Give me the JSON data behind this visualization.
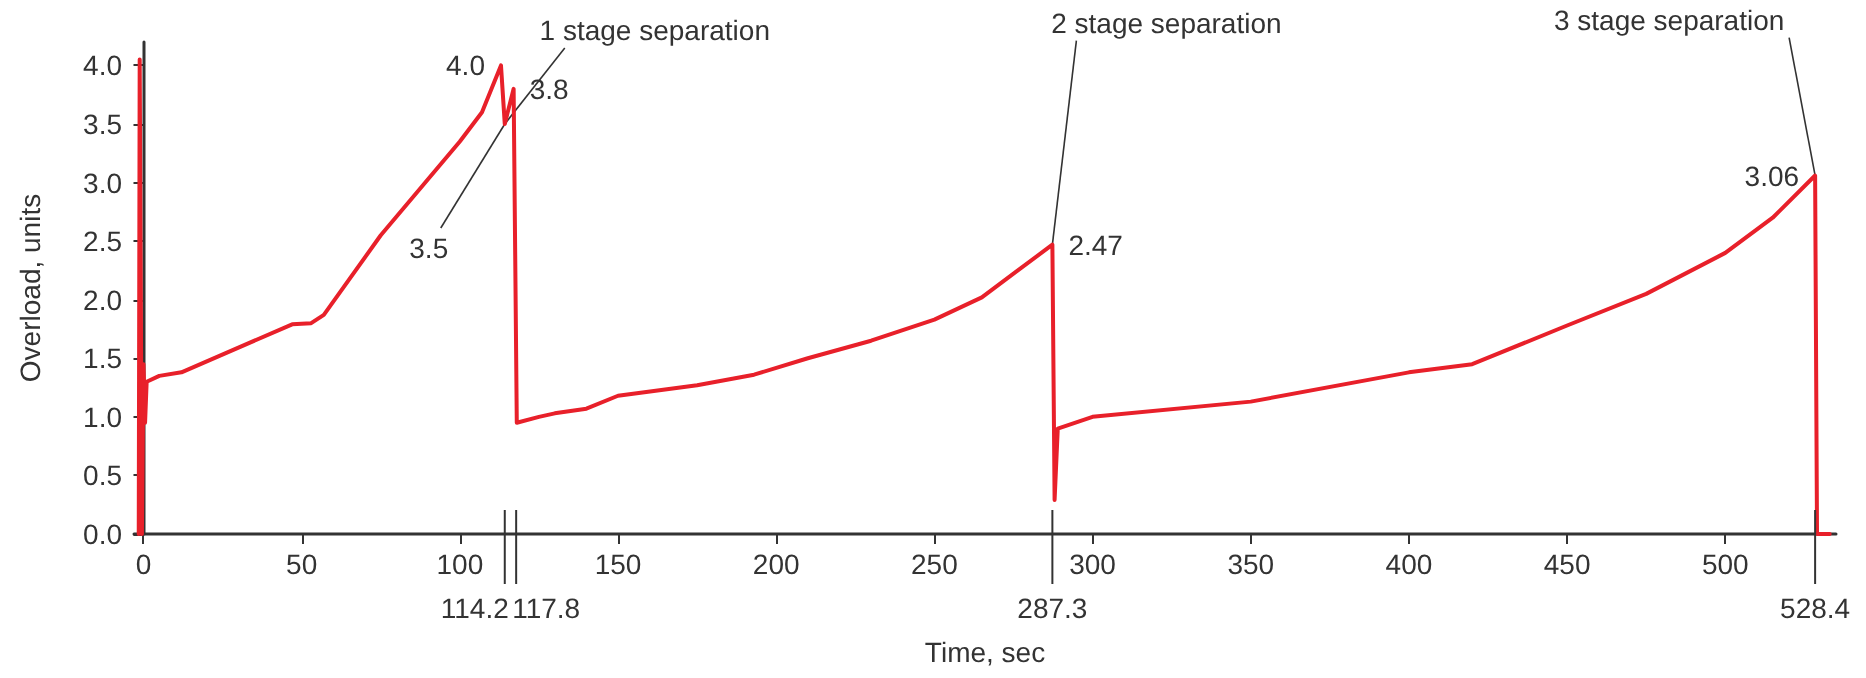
{
  "chart_data": {
    "type": "line",
    "xlabel": "Time, sec",
    "ylabel": "Overload, units",
    "x": [
      -1.5,
      -1.2,
      -0.5,
      0,
      0.5,
      1,
      5,
      12,
      47,
      53,
      57,
      75,
      100,
      107,
      113,
      114.2,
      117,
      118,
      125,
      130,
      140,
      150,
      175,
      193,
      210,
      230,
      250,
      265,
      287.3,
      288,
      289,
      300,
      350,
      400,
      420,
      450,
      475,
      500,
      515,
      528.4,
      529,
      533
    ],
    "series": [
      {
        "color": "#e8202a",
        "values": [
          0,
          4.05,
          0,
          1.45,
          0.95,
          1.3,
          1.35,
          1.38,
          1.79,
          1.8,
          1.87,
          2.55,
          3.35,
          3.6,
          4.0,
          3.5,
          3.8,
          0.95,
          1.0,
          1.03,
          1.07,
          1.18,
          1.27,
          1.36,
          1.5,
          1.65,
          1.83,
          2.02,
          2.47,
          0.29,
          0.9,
          1.0,
          1.13,
          1.38,
          1.45,
          1.78,
          2.05,
          2.4,
          2.7,
          3.06,
          0,
          0
        ],
        "value_labels": [
          null,
          null,
          null,
          null,
          null,
          null,
          null,
          null,
          null,
          null,
          null,
          null,
          null,
          null,
          "4.0",
          "3.5",
          "3.8",
          null,
          null,
          null,
          null,
          null,
          null,
          null,
          null,
          null,
          null,
          null,
          "2.47",
          null,
          null,
          null,
          null,
          null,
          null,
          null,
          null,
          null,
          null,
          "3.06",
          null,
          null
        ]
      }
    ],
    "xlim": [
      -3,
      535
    ],
    "ylim": [
      0,
      4.2
    ],
    "xticks": [
      0,
      50,
      100,
      150,
      200,
      250,
      300,
      350,
      400,
      450,
      500
    ],
    "yticks": [
      {
        "value": 0,
        "label": "0.0"
      },
      {
        "value": 0.5,
        "label": "0.5"
      },
      {
        "value": 1,
        "label": "1.0"
      },
      {
        "value": 1.5,
        "label": "1.5"
      },
      {
        "value": 2,
        "label": "2.0"
      },
      {
        "value": 2.5,
        "label": "2.5"
      },
      {
        "value": 3,
        "label": "3.0"
      },
      {
        "value": 3.5,
        "label": "3.5"
      },
      {
        "value": 4,
        "label": "4.0"
      }
    ],
    "ref_lines": [
      {
        "axis": "x",
        "value": 114.2,
        "label": "114.2"
      },
      {
        "axis": "x",
        "value": 117.8,
        "label": "117.8"
      },
      {
        "axis": "x",
        "value": 287.3,
        "label": "287.3"
      },
      {
        "axis": "x",
        "value": 528.4,
        "label": "528.4"
      }
    ],
    "annotations": [
      {
        "text": "1 stage separation",
        "x": 114.2,
        "y": 3.5
      },
      {
        "text": "2 stage separation",
        "x": 287.3,
        "y": 2.47
      },
      {
        "text": "3 stage separation",
        "x": 528.4,
        "y": 3.06
      }
    ],
    "grid": false,
    "marker": "none",
    "line_style": "solid"
  }
}
